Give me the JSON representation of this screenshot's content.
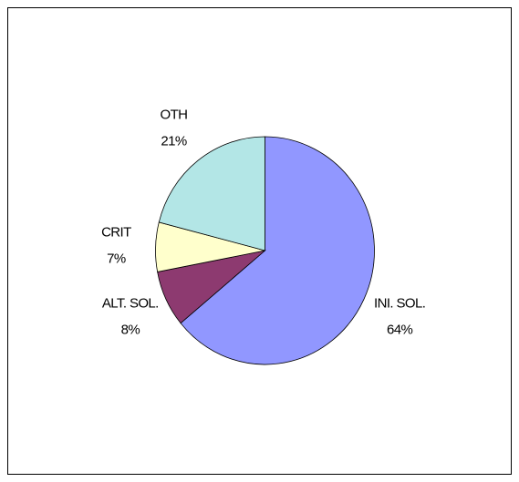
{
  "chart_data": {
    "type": "pie",
    "categories": [
      "INI. SOL.",
      "ALT. SOL.",
      "CRIT",
      "OTH"
    ],
    "values": [
      64,
      8,
      7,
      21
    ],
    "value_labels": [
      "64%",
      "8%",
      "7%",
      "21%"
    ],
    "colors": [
      "#9197ff",
      "#8d3a70",
      "#ffffcc",
      "#b3e6e6"
    ]
  }
}
